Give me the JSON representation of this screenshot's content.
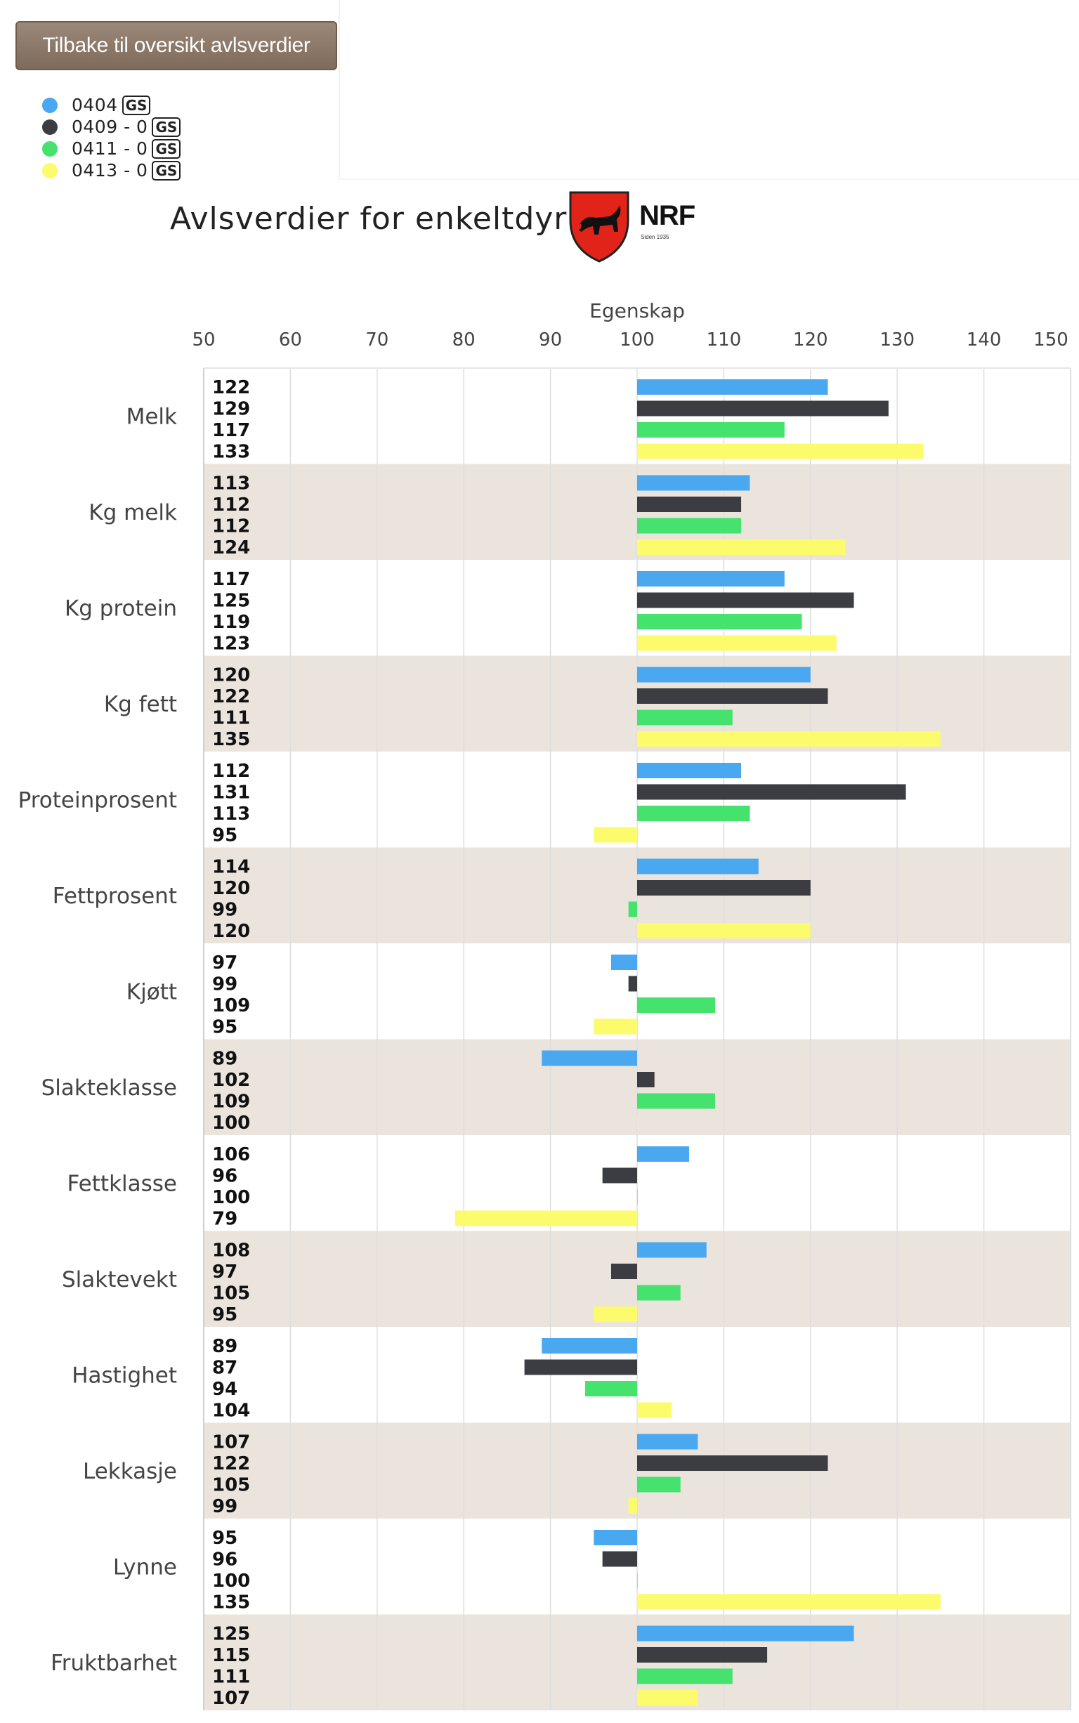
{
  "back_button": {
    "label": "Tilbake til oversikt avlsverdier"
  },
  "legend": [
    {
      "code": "0404",
      "badge": "GS",
      "color": "#4aa8f0"
    },
    {
      "code": "0409 - 0",
      "badge": "GS",
      "color": "#3c3d42"
    },
    {
      "code": "0411 - 0",
      "badge": "GS",
      "color": "#45e26e"
    },
    {
      "code": "0413 - 0",
      "badge": "GS",
      "color": "#fbfb6b"
    }
  ],
  "header": {
    "title": "Avlsverdier for enkeltdyr",
    "logo_text": "NRF",
    "logo_subtext": "Siden 1935"
  },
  "chart_data": {
    "type": "bar",
    "orientation": "horizontal",
    "xlabel": "Egenskap",
    "xlim": [
      50,
      150
    ],
    "baseline": 100,
    "xticks": [
      50,
      60,
      70,
      80,
      90,
      100,
      110,
      120,
      130,
      140,
      150
    ],
    "grid": true,
    "categories": [
      "Melk",
      "Kg melk",
      "Kg protein",
      "Kg fett",
      "Proteinprosent",
      "Fettprosent",
      "Kjøtt",
      "Slakteklasse",
      "Fettklasse",
      "Slaktevekt",
      "Hastighet",
      "Lekkasje",
      "Lynne",
      "Fruktbarhet"
    ],
    "series": [
      {
        "name": "0404",
        "color": "#4aa8f0",
        "values": [
          122,
          113,
          117,
          120,
          112,
          114,
          97,
          89,
          106,
          108,
          89,
          107,
          95,
          125
        ]
      },
      {
        "name": "0409 - 0",
        "color": "#3c3d42",
        "values": [
          129,
          112,
          125,
          122,
          131,
          120,
          99,
          102,
          96,
          97,
          87,
          122,
          96,
          115
        ]
      },
      {
        "name": "0411 - 0",
        "color": "#45e26e",
        "values": [
          117,
          112,
          119,
          111,
          113,
          99,
          109,
          109,
          100,
          105,
          94,
          105,
          100,
          111
        ]
      },
      {
        "name": "0413 - 0",
        "color": "#fbfb6b",
        "values": [
          133,
          124,
          123,
          135,
          95,
          120,
          95,
          100,
          79,
          95,
          104,
          99,
          135,
          107
        ]
      }
    ],
    "band_colors": [
      "#ffffff",
      "#ebe4dd"
    ]
  }
}
